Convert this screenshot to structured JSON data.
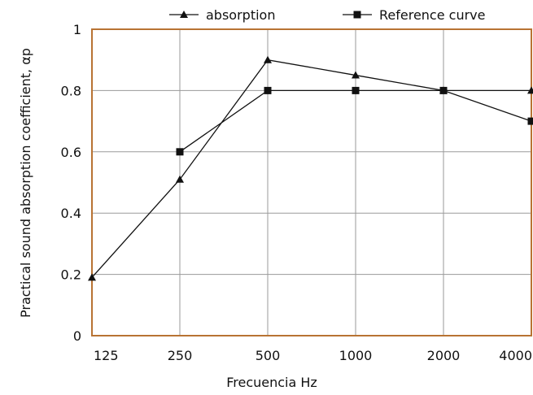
{
  "chart_data": {
    "type": "line",
    "x": [
      125,
      250,
      500,
      1000,
      2000,
      4000
    ],
    "x_tick_labels": [
      "125",
      "250",
      "500",
      "1000",
      "2000",
      "4000"
    ],
    "x_scale": "log",
    "xlabel": "Frecuencia Hz",
    "ylabel": "Practical sound absorption coefficient, αp",
    "ylim": [
      0,
      1
    ],
    "y_ticks": [
      0,
      0.2,
      0.4,
      0.6,
      0.8,
      1
    ],
    "y_tick_labels": [
      "0",
      "0.2",
      "0.4",
      "0.6",
      "0.8",
      "1"
    ],
    "grid": true,
    "legend_position": "top",
    "frame_color": "#b87333",
    "series": [
      {
        "name": "absorption",
        "marker": "triangle",
        "color": "#111111",
        "values": [
          0.19,
          0.51,
          0.9,
          0.85,
          0.8,
          0.8
        ]
      },
      {
        "name": "Reference curve",
        "marker": "square",
        "color": "#111111",
        "values": [
          null,
          0.6,
          0.8,
          0.8,
          0.8,
          0.7
        ]
      }
    ]
  }
}
